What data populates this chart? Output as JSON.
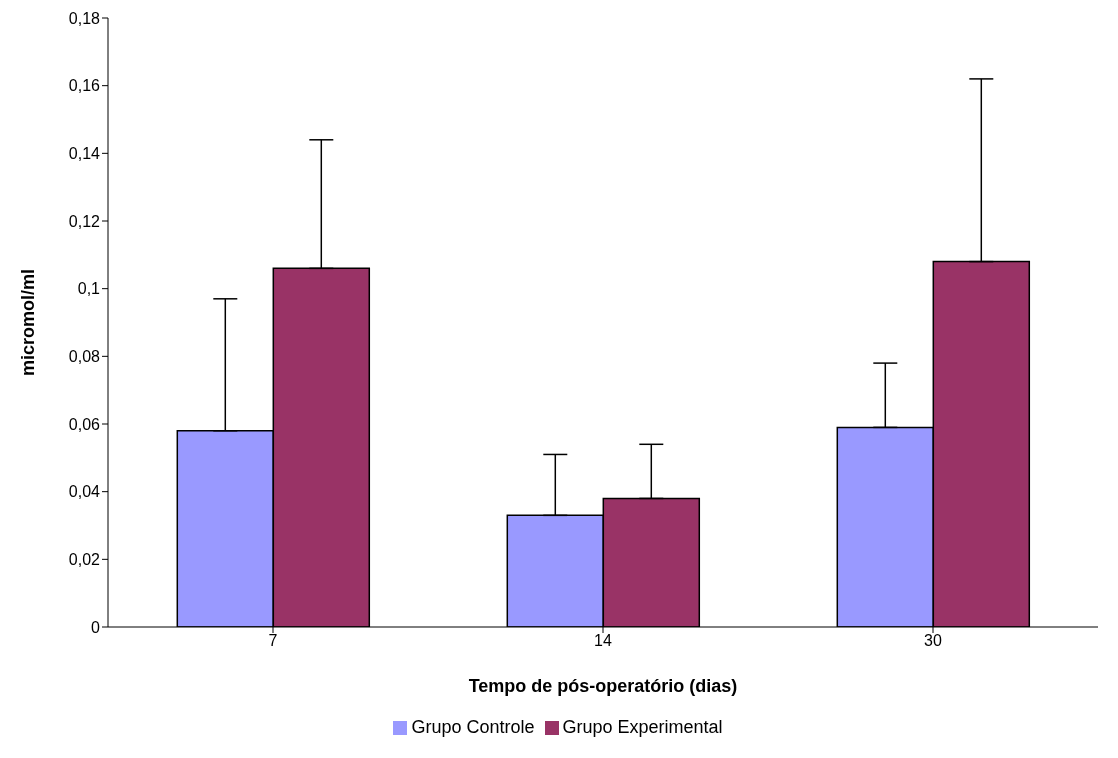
{
  "chart_data": {
    "type": "bar",
    "xlabel": "Tempo de pós-operatório (dias)",
    "ylabel": "micromol/ml",
    "categories": [
      "7",
      "14",
      "30"
    ],
    "series": [
      {
        "name": "Grupo Controle",
        "color": "#9999ff",
        "values": [
          0.058,
          0.033,
          0.059
        ],
        "errors": [
          [
            0.058,
            0.097
          ],
          [
            0.033,
            0.051
          ],
          [
            0.059,
            0.078
          ]
        ]
      },
      {
        "name": "Grupo Experimental",
        "color": "#993366",
        "values": [
          0.106,
          0.038,
          0.108
        ],
        "errors": [
          [
            0.106,
            0.144
          ],
          [
            0.038,
            0.054
          ],
          [
            0.108,
            0.162
          ]
        ]
      }
    ],
    "ylim": [
      0,
      0.18
    ],
    "yticks": [
      0,
      {
        "value": 0.02,
        "label": "0,02"
      },
      {
        "value": 0.04,
        "label": "0,04"
      },
      {
        "value": 0.06,
        "label": "0,06"
      },
      {
        "value": 0.08,
        "label": "0,08"
      },
      {
        "value": 0.1,
        "label": "0,1"
      },
      {
        "value": 0.12,
        "label": "0,12"
      },
      {
        "value": 0.14,
        "label": "0,14"
      },
      {
        "value": 0.16,
        "label": "0,16"
      },
      {
        "value": 0.18,
        "label": "0,18"
      }
    ],
    "grid": false,
    "legend": "bottom"
  }
}
